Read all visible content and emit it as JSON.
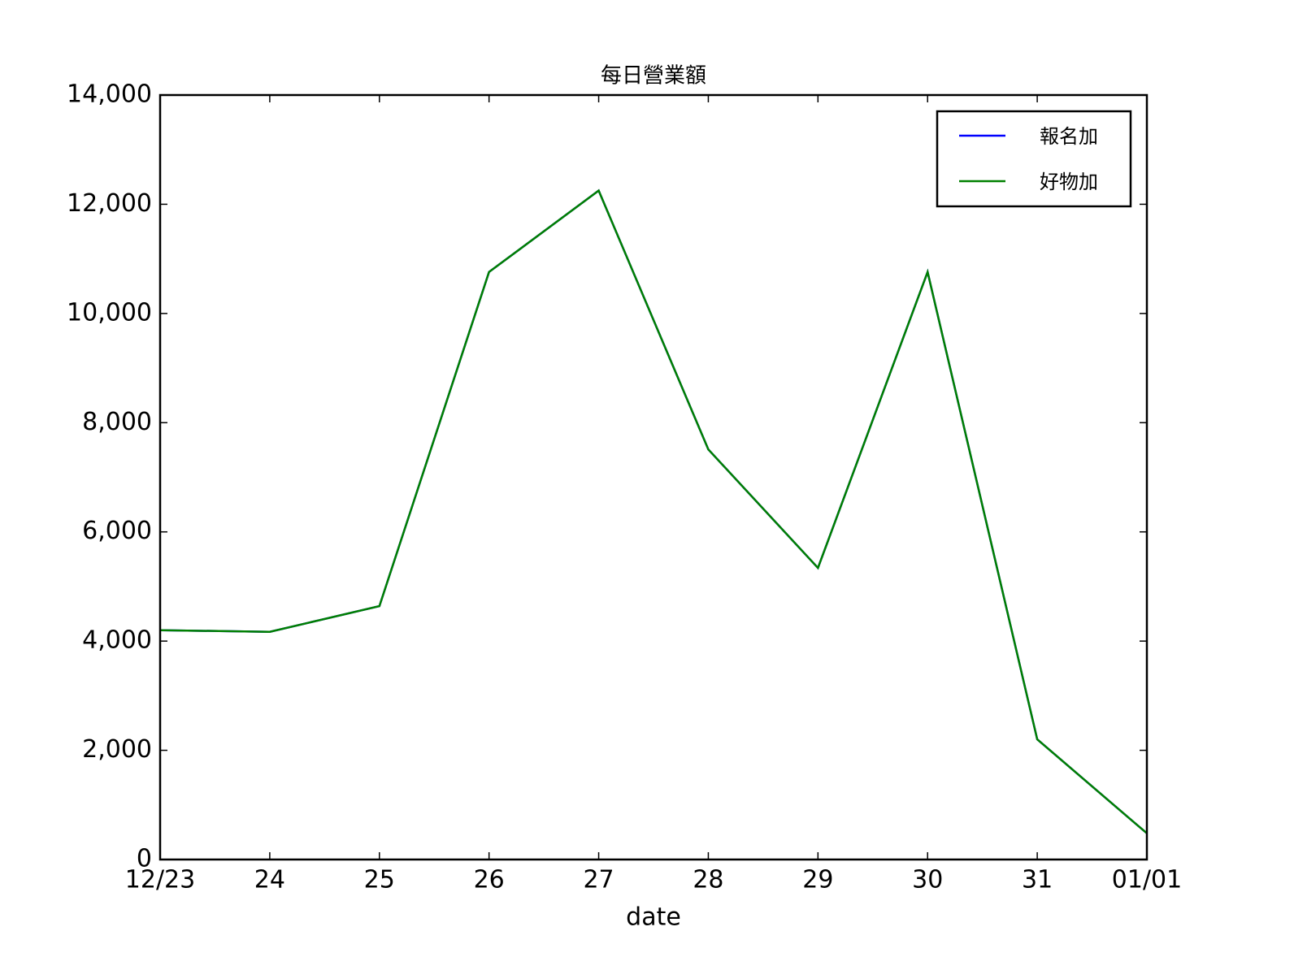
{
  "chart_data": {
    "type": "line",
    "title": "每日營業額",
    "x_label": "date",
    "categories": [
      "12/23",
      "24",
      "25",
      "26",
      "27",
      "28",
      "29",
      "30",
      "31",
      "01/01"
    ],
    "series": [
      {
        "name": "報名加",
        "color": "#0000ff",
        "values": [
          4200,
          4170,
          4640,
          10760,
          12250,
          7510,
          5340,
          10760,
          2200,
          480
        ]
      },
      {
        "name": "好物加",
        "color": "#008000",
        "values": [
          4200,
          4170,
          4640,
          10760,
          12250,
          7510,
          5340,
          10760,
          2200,
          480
        ]
      }
    ],
    "ylim": [
      0,
      14000
    ],
    "yticks": [
      0,
      {
        "value": 2000,
        "label": "2,000"
      },
      {
        "value": 4000,
        "label": "4,000"
      },
      {
        "value": 6000,
        "label": "6,000"
      },
      {
        "value": 8000,
        "label": "8,000"
      },
      {
        "value": 10000,
        "label": "10,000"
      },
      {
        "value": 12000,
        "label": "12,000"
      },
      {
        "value": 14000,
        "label": "14,000"
      }
    ],
    "legend": "upper right"
  }
}
